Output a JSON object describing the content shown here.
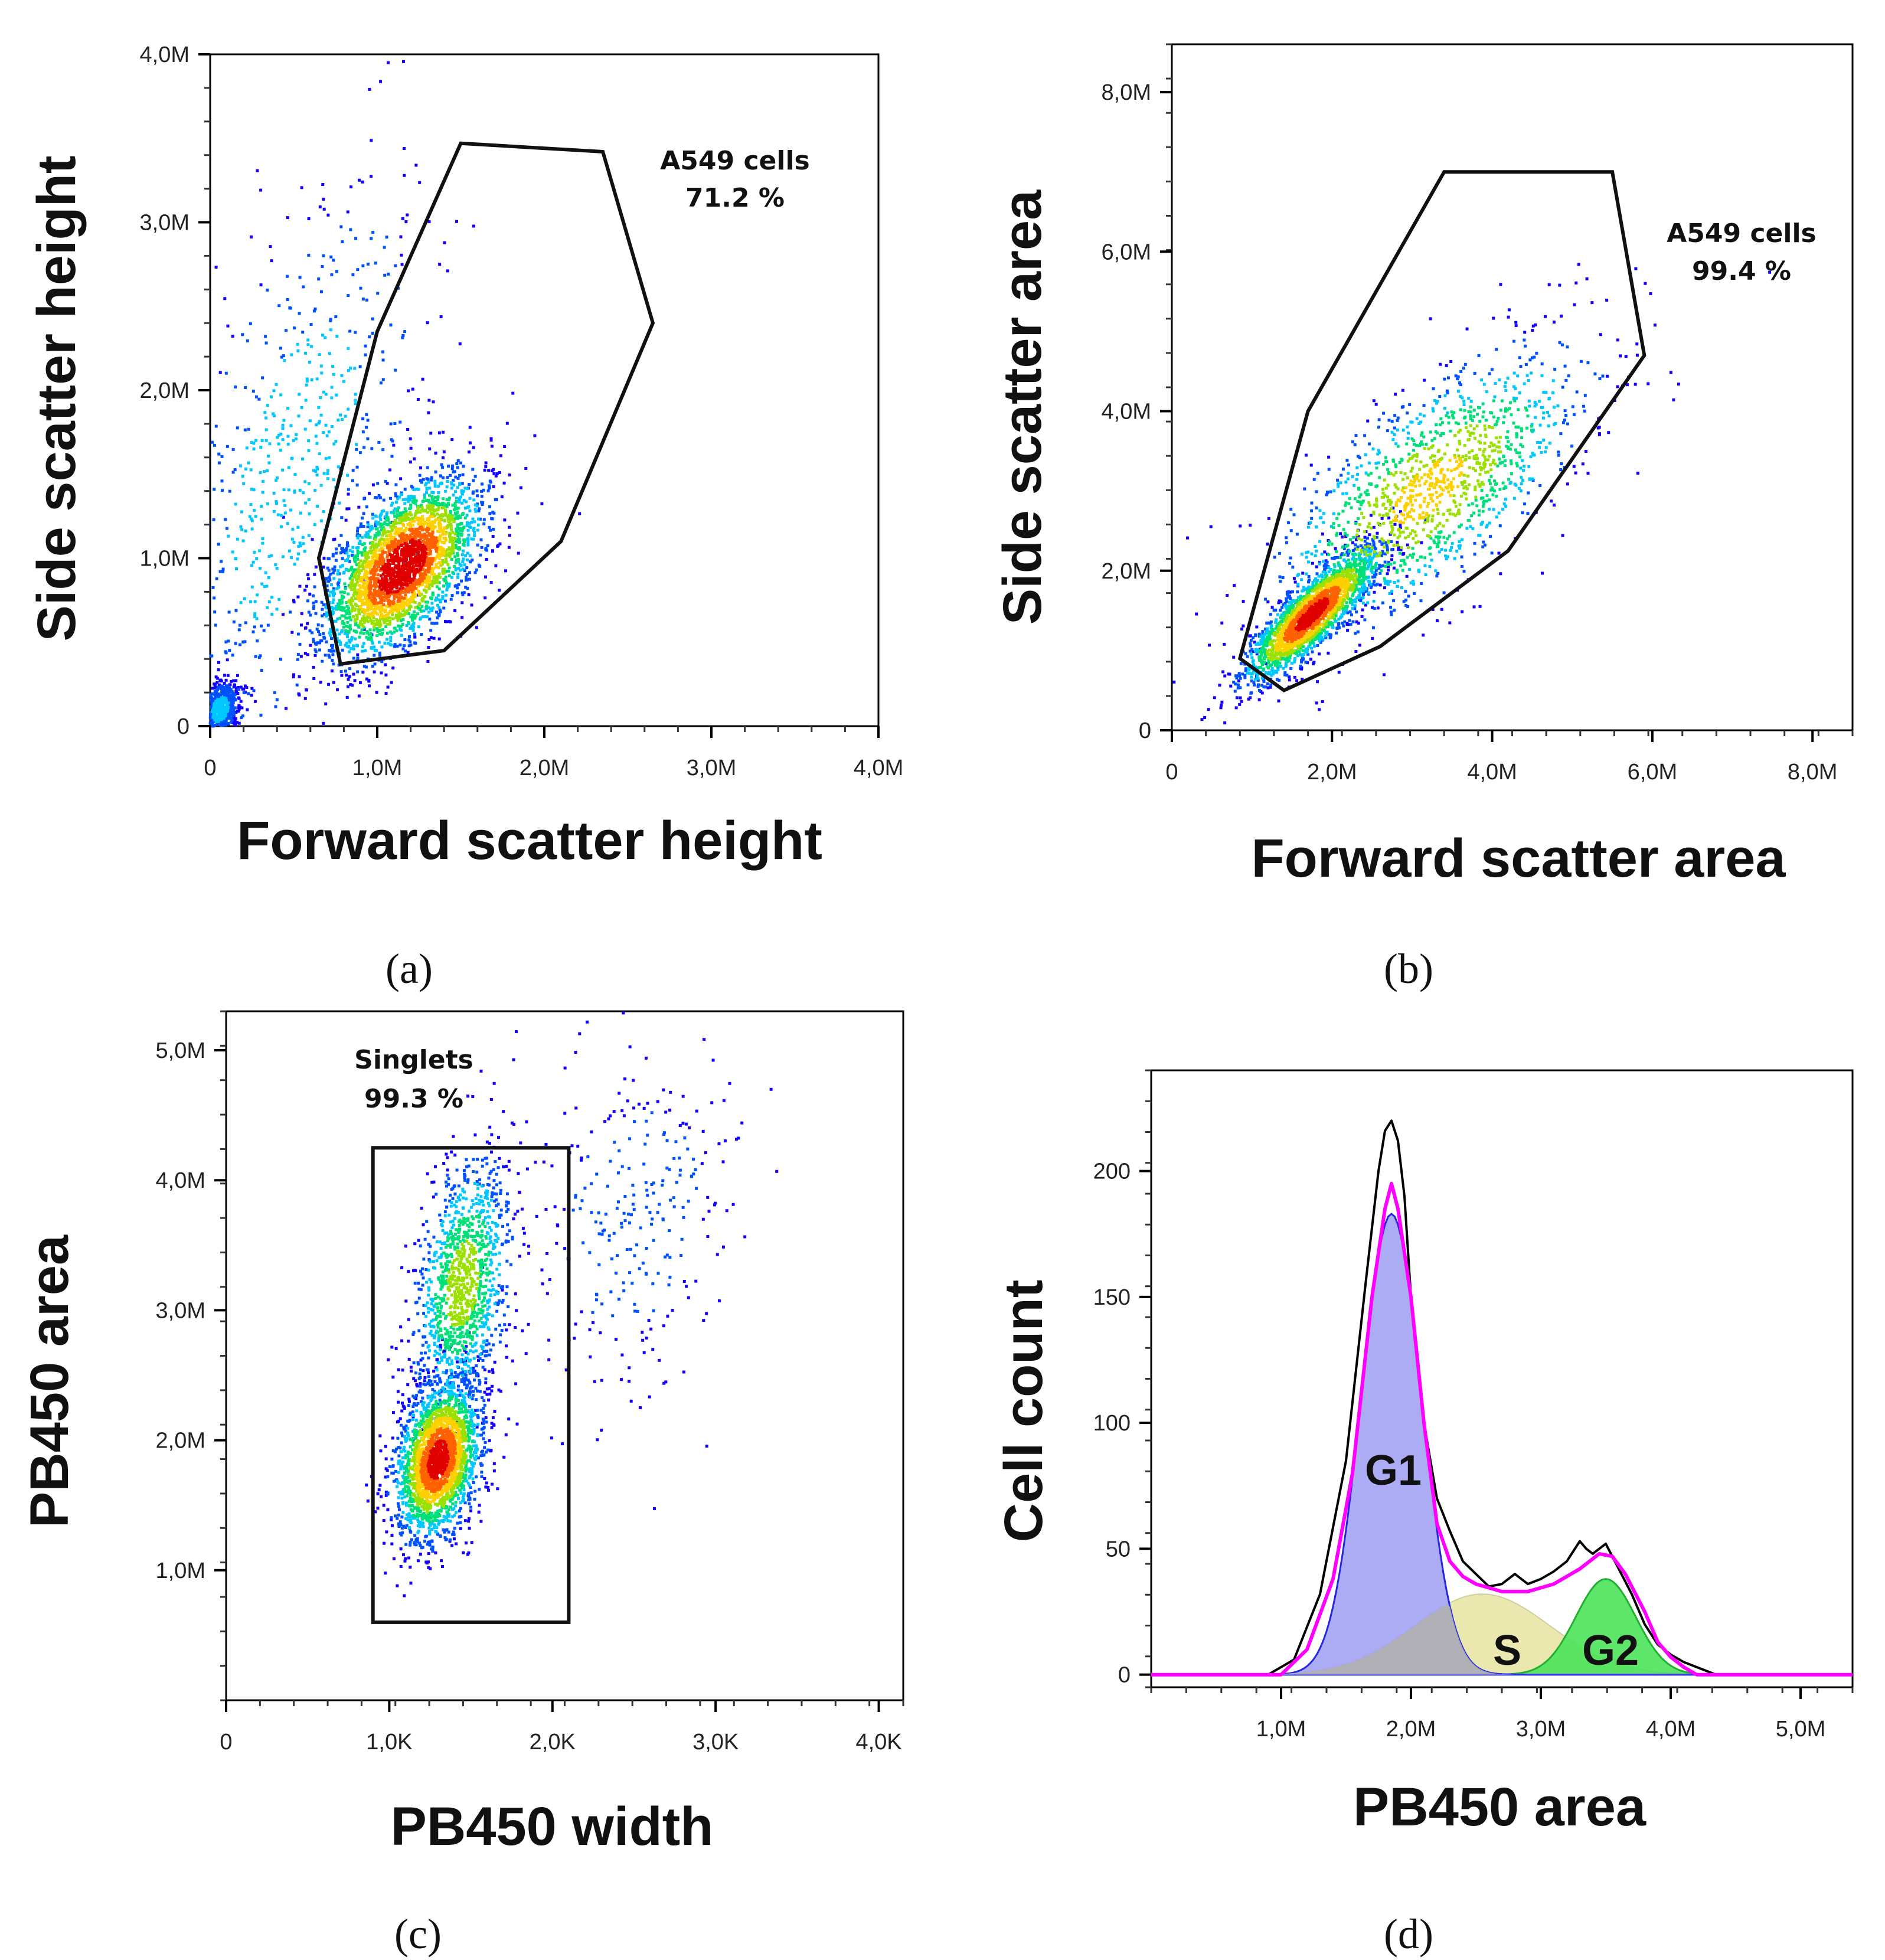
{
  "colors": {
    "dot_colormap": [
      "#1400ff",
      "#0050ff",
      "#00c8ff",
      "#00e078",
      "#9ae000",
      "#ffd000",
      "#ff6000",
      "#e00000"
    ],
    "gate_line": "#111111",
    "histogram_total": "#000000",
    "histogram_fit": "#ff00ff",
    "g1_fill": "#9e9ef2",
    "g1_line": "#2626e0",
    "s_fill": "#e8e6a6",
    "overlap_fill": "#b0b0b0",
    "g2_fill": "#4be35a"
  },
  "panels": [
    {
      "letter": "(a)"
    },
    {
      "letter": "(b)"
    },
    {
      "letter": "(c)"
    },
    {
      "letter": "(d)"
    }
  ],
  "chart_data": [
    {
      "type": "scatter",
      "panel": "(a)",
      "xlabel": "Forward scatter height",
      "ylabel": "Side scatter height",
      "xlim": [
        0,
        4000000
      ],
      "ylim": [
        0,
        4000000
      ],
      "xticks": [
        0,
        1000000,
        2000000,
        3000000,
        4000000
      ],
      "yticks": [
        0,
        1000000,
        2000000,
        3000000,
        4000000
      ],
      "x_tick_labels": [
        "0",
        "1,0M",
        "2,0M",
        "3,0M",
        "4,0M"
      ],
      "y_tick_labels": [
        "0",
        "1,0M",
        "2,0M",
        "3,0M",
        "4,0M"
      ],
      "coloring": "density (blue low to red high)",
      "populations": [
        {
          "center": [
            1150000,
            950000
          ],
          "spread": [
            230000,
            260000
          ],
          "corr": 0.55,
          "fraction": 0.72
        },
        {
          "center": [
            60000,
            100000
          ],
          "spread": [
            60000,
            90000
          ],
          "corr": 0.3,
          "fraction": 0.13
        },
        {
          "center": [
            500000,
            1500000
          ],
          "spread": [
            400000,
            900000
          ],
          "corr": 0.5,
          "fraction": 0.15
        }
      ],
      "gate": {
        "name": "A549 cells",
        "percent": "71.2 %",
        "vertices": [
          [
            650000,
            1000000
          ],
          [
            1000000,
            2350000
          ],
          [
            1500000,
            3470000
          ],
          [
            2350000,
            3420000
          ],
          [
            2650000,
            2400000
          ],
          [
            2100000,
            1100000
          ],
          [
            1400000,
            450000
          ],
          [
            780000,
            370000
          ]
        ]
      }
    },
    {
      "type": "scatter",
      "panel": "(b)",
      "xlabel": "Forward scatter area",
      "ylabel": "Side scatter area",
      "xlim": [
        0,
        8500000
      ],
      "ylim": [
        0,
        8600000
      ],
      "xticks": [
        0,
        2000000,
        4000000,
        6000000,
        8000000
      ],
      "yticks": [
        0,
        2000000,
        4000000,
        6000000,
        8000000
      ],
      "x_tick_labels": [
        "0",
        "2,0M",
        "4,0M",
        "6,0M",
        "8,0M"
      ],
      "y_tick_labels": [
        "0",
        "2,0M",
        "4,0M",
        "6,0M",
        "8,0M"
      ],
      "coloring": "density (blue low to red high)",
      "populations": [
        {
          "center": [
            1750000,
            1450000
          ],
          "spread": [
            420000,
            420000
          ],
          "corr": 0.85,
          "fraction": 0.62
        },
        {
          "center": [
            3200000,
            3000000
          ],
          "spread": [
            1000000,
            900000
          ],
          "corr": 0.7,
          "fraction": 0.38
        }
      ],
      "gate": {
        "name": "A549 cells",
        "percent": "99.4 %",
        "vertices": [
          [
            850000,
            900000
          ],
          [
            1700000,
            4000000
          ],
          [
            3400000,
            7000000
          ],
          [
            5500000,
            7000000
          ],
          [
            5900000,
            4700000
          ],
          [
            4200000,
            2250000
          ],
          [
            2600000,
            1050000
          ],
          [
            1400000,
            500000
          ]
        ]
      }
    },
    {
      "type": "scatter",
      "panel": "(c)",
      "xlabel": "PB450 width",
      "ylabel": "PB450 area",
      "xlim": [
        0,
        4150
      ],
      "ylim": [
        0,
        5300000
      ],
      "xticks": [
        0,
        1000,
        2000,
        3000,
        4000
      ],
      "yticks": [
        1000000,
        2000000,
        3000000,
        4000000,
        5000000
      ],
      "x_tick_labels": [
        "0",
        "1,0K",
        "2,0K",
        "3,0K",
        "4,0K"
      ],
      "y_tick_labels": [
        "1,0M",
        "2,0M",
        "3,0M",
        "4,0M",
        "5,0M"
      ],
      "coloring": "density (blue low to red high)",
      "populations": [
        {
          "center": [
            1300,
            1850000
          ],
          "spread": [
            130,
            300000
          ],
          "corr": 0.3,
          "fraction": 0.62
        },
        {
          "center": [
            1450,
            3200000
          ],
          "spread": [
            150,
            500000
          ],
          "corr": 0.3,
          "fraction": 0.31
        },
        {
          "center": [
            2500,
            3700000
          ],
          "spread": [
            350,
            700000
          ],
          "corr": 0.2,
          "fraction": 0.07
        }
      ],
      "gate": {
        "name": "Singlets",
        "percent": "99.3 %",
        "vertices": [
          [
            900,
            600000
          ],
          [
            900,
            4250000
          ],
          [
            2100,
            4250000
          ],
          [
            2100,
            600000
          ]
        ]
      }
    },
    {
      "type": "area",
      "panel": "(d)",
      "xlabel": "PB450 area",
      "ylabel": "Cell count",
      "xlim": [
        0,
        5400000
      ],
      "ylim": [
        -5,
        240
      ],
      "xticks": [
        1000000,
        2000000,
        3000000,
        4000000,
        5000000
      ],
      "yticks": [
        0,
        50,
        100,
        150,
        200
      ],
      "x_tick_labels": [
        "1,0M",
        "2,0M",
        "3,0M",
        "4,0M",
        "5,0M"
      ],
      "y_tick_labels": [
        "0",
        "50",
        "100",
        "150",
        "200"
      ],
      "series": [
        {
          "name": "G1",
          "peak_x": 1850000,
          "peak_y": 183
        },
        {
          "name": "S",
          "peak_x": 2550000,
          "peak_y": 32
        },
        {
          "name": "G2",
          "peak_x": 3500000,
          "peak_y": 38
        }
      ],
      "total_histogram": {
        "x": [
          0,
          900000,
          1100000,
          1300000,
          1500000,
          1650000,
          1750000,
          1800000,
          1850000,
          1900000,
          1950000,
          2000000,
          2100000,
          2200000,
          2300000,
          2400000,
          2500000,
          2600000,
          2700000,
          2800000,
          2900000,
          3000000,
          3100000,
          3200000,
          3300000,
          3350000,
          3400000,
          3500000,
          3600000,
          3700000,
          3800000,
          3900000,
          4000000,
          4100000,
          4200000,
          4350000,
          5400000
        ],
        "y": [
          0,
          0,
          6,
          32,
          85,
          155,
          200,
          216,
          220,
          212,
          190,
          150,
          100,
          70,
          57,
          45,
          40,
          35,
          36,
          40,
          36,
          38,
          41,
          45,
          53,
          50,
          48,
          52,
          42,
          32,
          20,
          12,
          8,
          5,
          3,
          0,
          0
        ]
      },
      "fit_total": {
        "x": [
          0,
          1000000,
          1200000,
          1400000,
          1550000,
          1700000,
          1800000,
          1850000,
          1900000,
          2000000,
          2100000,
          2200000,
          2300000,
          2400000,
          2500000,
          2700000,
          2900000,
          3100000,
          3300000,
          3450000,
          3550000,
          3650000,
          3800000,
          3900000,
          4000000,
          4100000,
          4200000,
          5400000
        ],
        "y": [
          0,
          0,
          10,
          38,
          80,
          150,
          185,
          195,
          185,
          150,
          100,
          60,
          45,
          39,
          36,
          33,
          33,
          36,
          42,
          48,
          47,
          40,
          25,
          13,
          7,
          3,
          0,
          0
        ]
      },
      "annotations": [
        "G1",
        "S",
        "G2"
      ]
    }
  ]
}
